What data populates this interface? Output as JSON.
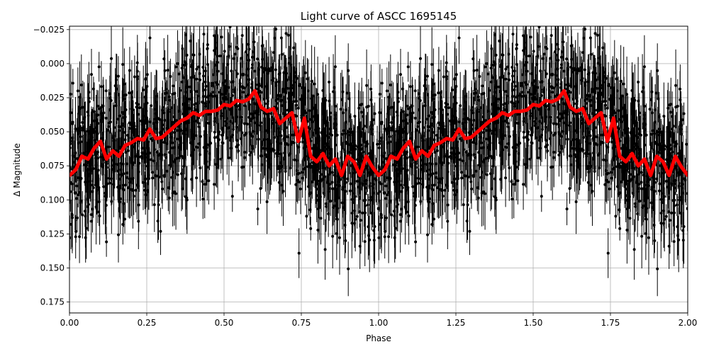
{
  "chart_data": {
    "type": "scatter",
    "title": "Light curve of ASCC 1695145",
    "xlabel": "Phase",
    "ylabel": "Δ Magnitude",
    "xlim": [
      0.0,
      2.0
    ],
    "ylim": [
      0.183,
      -0.0275
    ],
    "y_inverted": true,
    "grid": true,
    "x_ticks": [
      "0.00",
      "0.25",
      "0.50",
      "0.75",
      "1.00",
      "1.25",
      "1.50",
      "1.75",
      "2.00"
    ],
    "x_tick_values": [
      0.0,
      0.25,
      0.5,
      0.75,
      1.0,
      1.25,
      1.5,
      1.75,
      2.0
    ],
    "y_ticks": [
      "−0.025",
      "0.000",
      "0.025",
      "0.050",
      "0.075",
      "0.100",
      "0.125",
      "0.150",
      "0.175"
    ],
    "y_tick_values": [
      -0.025,
      0.0,
      0.025,
      0.05,
      0.075,
      0.1,
      0.125,
      0.15,
      0.175
    ],
    "series": [
      {
        "name": "observations",
        "style": "black points with vertical error bars",
        "color": "#000000",
        "description": "Dense phase-folded photometry (thousands of points) scattered between ~-0.03 and ~0.18 mag, duplicated over phase 0-1 and 1-2"
      },
      {
        "name": "binned model",
        "style": "thick red line",
        "color": "#ff0000",
        "period_in_phase": 1.0,
        "x": [
          0.0,
          0.02,
          0.04,
          0.06,
          0.08,
          0.1,
          0.12,
          0.14,
          0.16,
          0.18,
          0.2,
          0.22,
          0.24,
          0.26,
          0.28,
          0.3,
          0.32,
          0.34,
          0.36,
          0.38,
          0.4,
          0.42,
          0.44,
          0.46,
          0.48,
          0.5,
          0.52,
          0.54,
          0.56,
          0.58,
          0.6,
          0.62,
          0.64,
          0.66,
          0.68,
          0.7,
          0.72,
          0.74,
          0.76,
          0.78,
          0.8,
          0.82,
          0.84,
          0.86,
          0.88,
          0.9,
          0.92,
          0.94,
          0.96,
          0.98,
          1.0
        ],
        "y": [
          0.082,
          0.078,
          0.068,
          0.07,
          0.062,
          0.057,
          0.07,
          0.064,
          0.068,
          0.06,
          0.058,
          0.055,
          0.056,
          0.048,
          0.055,
          0.054,
          0.05,
          0.046,
          0.042,
          0.04,
          0.036,
          0.038,
          0.035,
          0.035,
          0.034,
          0.03,
          0.031,
          0.027,
          0.028,
          0.026,
          0.02,
          0.032,
          0.035,
          0.033,
          0.044,
          0.04,
          0.036,
          0.057,
          0.04,
          0.068,
          0.072,
          0.066,
          0.075,
          0.07,
          0.082,
          0.068,
          0.072,
          0.082,
          0.068,
          0.076,
          0.082
        ]
      }
    ]
  }
}
